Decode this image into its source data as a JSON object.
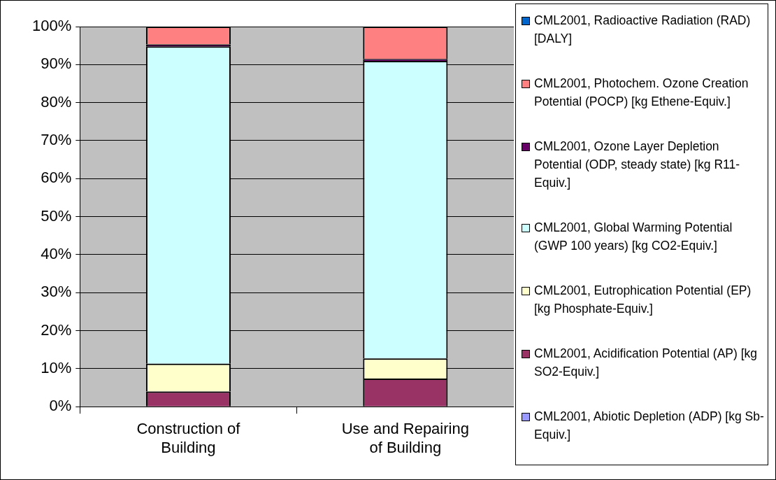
{
  "chart_data": {
    "type": "bar",
    "stacked": true,
    "categories": [
      "Construction of Building",
      "Use and Repairing of Building"
    ],
    "series": [
      {
        "name": "CML2001, Abiotic Depletion (ADP) [kg Sb-Equiv.]",
        "color": "#9999ff",
        "values": [
          0,
          0
        ]
      },
      {
        "name": "CML2001, Acidification Potential (AP) [kg SO2-Equiv.]",
        "color": "#993366",
        "values": [
          4,
          7.4
        ]
      },
      {
        "name": "CML2001, Eutrophication Potential (EP) [kg Phosphate-Equiv.]",
        "color": "#ffffcc",
        "values": [
          7.3,
          5.3
        ]
      },
      {
        "name": "CML2001, Global Warming Potential (GWP 100 years) [kg CO2-Equiv.]",
        "color": "#ccffff",
        "values": [
          83.5,
          78.3
        ]
      },
      {
        "name": "CML2001, Ozone Layer Depletion Potential (ODP, steady state) [kg R11-Equiv.]",
        "color": "#660066",
        "values": [
          0.5,
          0.5
        ]
      },
      {
        "name": "CML2001, Photochem. Ozone Creation Potential (POCP) [kg Ethene-Equiv.]",
        "color": "#ff8080",
        "values": [
          4.7,
          8.5
        ]
      },
      {
        "name": "CML2001, Radioactive Radiation (RAD) [DALY]",
        "color": "#0066cc",
        "values": [
          0,
          0
        ]
      }
    ],
    "ylim": [
      0,
      100
    ],
    "yticks": [
      {
        "value": 0,
        "label": "0%"
      },
      {
        "value": 10,
        "label": "10%"
      },
      {
        "value": 20,
        "label": "20%"
      },
      {
        "value": 30,
        "label": "30%"
      },
      {
        "value": 40,
        "label": "40%"
      },
      {
        "value": 50,
        "label": "50%"
      },
      {
        "value": 60,
        "label": "60%"
      },
      {
        "value": 70,
        "label": "70%"
      },
      {
        "value": 80,
        "label": "80%"
      },
      {
        "value": 90,
        "label": "90%"
      },
      {
        "value": 100,
        "label": "100%"
      }
    ],
    "grid": "y",
    "legend": "right"
  }
}
